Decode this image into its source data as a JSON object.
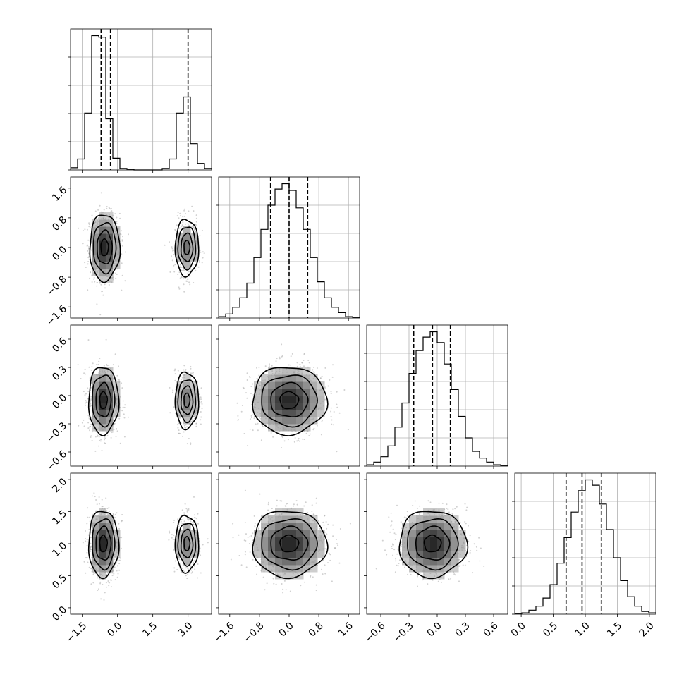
{
  "chart_data": {
    "type": "corner",
    "parameters": [
      {
        "index": 0,
        "range": [
          -2.0,
          4.0
        ],
        "ticks": [
          -1.5,
          0.0,
          1.5,
          3.0
        ],
        "tick_labels": [
          "−1.5",
          "0.0",
          "1.5",
          "3.0"
        ],
        "quantiles": [
          -0.7,
          -0.3,
          3.0
        ],
        "hist_edges": [
          -2.0,
          -1.7,
          -1.4,
          -1.1,
          -0.8,
          -0.5,
          -0.2,
          0.1,
          0.4,
          0.7,
          1.0,
          1.3,
          1.6,
          1.9,
          2.2,
          2.5,
          2.8,
          3.1,
          3.4,
          3.7,
          4.0
        ],
        "hist_counts": [
          0.3,
          1.5,
          7.8,
          18.4,
          18.2,
          7.0,
          1.6,
          0.2,
          0.1,
          0,
          0,
          0,
          0,
          0.2,
          1.5,
          7.8,
          10.0,
          3.6,
          0.9,
          0.2
        ]
      },
      {
        "index": 1,
        "range": [
          -1.9,
          1.9
        ],
        "ticks": [
          -1.6,
          -0.8,
          0.0,
          0.8,
          1.6
        ],
        "tick_labels": [
          "−1.6",
          "−0.8",
          "0.0",
          "0.8",
          "1.6"
        ],
        "quantiles": [
          -0.5,
          0.0,
          0.5
        ],
        "hist_edges": [
          -1.9,
          -1.71,
          -1.52,
          -1.33,
          -1.14,
          -0.95,
          -0.76,
          -0.57,
          -0.38,
          -0.19,
          0.0,
          0.19,
          0.38,
          0.57,
          0.76,
          0.95,
          1.14,
          1.33,
          1.52,
          1.71,
          1.9
        ],
        "hist_counts": [
          0.1,
          0.3,
          0.8,
          1.5,
          2.6,
          4.5,
          6.6,
          8.4,
          9.6,
          10.0,
          9.5,
          8.2,
          6.6,
          4.5,
          2.7,
          1.5,
          0.8,
          0.4,
          0.1,
          0.05
        ]
      },
      {
        "index": 2,
        "range": [
          -0.75,
          0.75
        ],
        "ticks": [
          -0.6,
          -0.3,
          0.0,
          0.3,
          0.6
        ],
        "tick_labels": [
          "−0.6",
          "−0.3",
          "0.0",
          "0.3",
          "0.6"
        ],
        "quantiles": [
          -0.25,
          -0.05,
          0.14
        ],
        "hist_edges": [
          -0.75,
          -0.675,
          -0.6,
          -0.525,
          -0.45,
          -0.375,
          -0.3,
          -0.225,
          -0.15,
          -0.075,
          0.0,
          0.075,
          0.15,
          0.225,
          0.3,
          0.375,
          0.45,
          0.525,
          0.6,
          0.675,
          0.75
        ],
        "hist_counts": [
          0.1,
          0.3,
          0.7,
          1.5,
          2.9,
          4.7,
          6.9,
          8.6,
          9.6,
          10.0,
          9.2,
          7.6,
          5.7,
          3.7,
          2.1,
          1.1,
          0.6,
          0.3,
          0.1,
          0.05
        ]
      },
      {
        "index": 3,
        "range": [
          -0.1,
          2.1
        ],
        "ticks": [
          0.0,
          0.5,
          1.0,
          1.5,
          2.0
        ],
        "tick_labels": [
          "0.0",
          "0.5",
          "1.0",
          "1.5",
          "2.0"
        ],
        "quantiles": [
          0.7,
          0.95,
          1.25
        ],
        "hist_edges": [
          -0.1,
          0.01,
          0.12,
          0.23,
          0.34,
          0.45,
          0.56,
          0.67,
          0.78,
          0.89,
          1.0,
          1.11,
          1.22,
          1.33,
          1.44,
          1.55,
          1.66,
          1.77,
          1.88,
          1.99,
          2.1
        ],
        "hist_counts": [
          0.05,
          0.1,
          0.3,
          0.6,
          1.2,
          2.2,
          3.8,
          5.7,
          7.6,
          9.2,
          10.0,
          9.6,
          8.2,
          6.3,
          4.2,
          2.5,
          1.3,
          0.6,
          0.2,
          0.1
        ]
      }
    ],
    "joint": [
      {
        "row": 1,
        "col": 0,
        "modes": [
          {
            "cx": -0.55,
            "cy": 0.0,
            "sx": 0.32,
            "sy": 0.45,
            "weight": 1.0
          },
          {
            "cx": 2.95,
            "cy": 0.0,
            "sx": 0.25,
            "sy": 0.38,
            "weight": 0.55
          }
        ]
      },
      {
        "row": 2,
        "col": 0,
        "modes": [
          {
            "cx": -0.6,
            "cy": -0.05,
            "sx": 0.32,
            "sy": 0.18,
            "weight": 1.0
          },
          {
            "cx": 2.95,
            "cy": -0.05,
            "sx": 0.25,
            "sy": 0.15,
            "weight": 0.55
          }
        ]
      },
      {
        "row": 2,
        "col": 1,
        "modes": [
          {
            "cx": 0.0,
            "cy": -0.05,
            "sx": 0.5,
            "sy": 0.18,
            "weight": 1.0
          }
        ]
      },
      {
        "row": 3,
        "col": 0,
        "modes": [
          {
            "cx": -0.6,
            "cy": 1.0,
            "sx": 0.32,
            "sy": 0.26,
            "weight": 1.0
          },
          {
            "cx": 2.95,
            "cy": 1.0,
            "sx": 0.25,
            "sy": 0.22,
            "weight": 0.55
          }
        ]
      },
      {
        "row": 3,
        "col": 1,
        "modes": [
          {
            "cx": 0.0,
            "cy": 1.0,
            "sx": 0.5,
            "sy": 0.26,
            "weight": 1.0
          }
        ]
      },
      {
        "row": 3,
        "col": 2,
        "modes": [
          {
            "cx": -0.05,
            "cy": 1.0,
            "sx": 0.18,
            "sy": 0.26,
            "weight": 1.0
          }
        ]
      }
    ],
    "contour_levels_sigma": [
      0.5,
      1.0,
      1.5,
      2.0
    ],
    "grid": true
  }
}
